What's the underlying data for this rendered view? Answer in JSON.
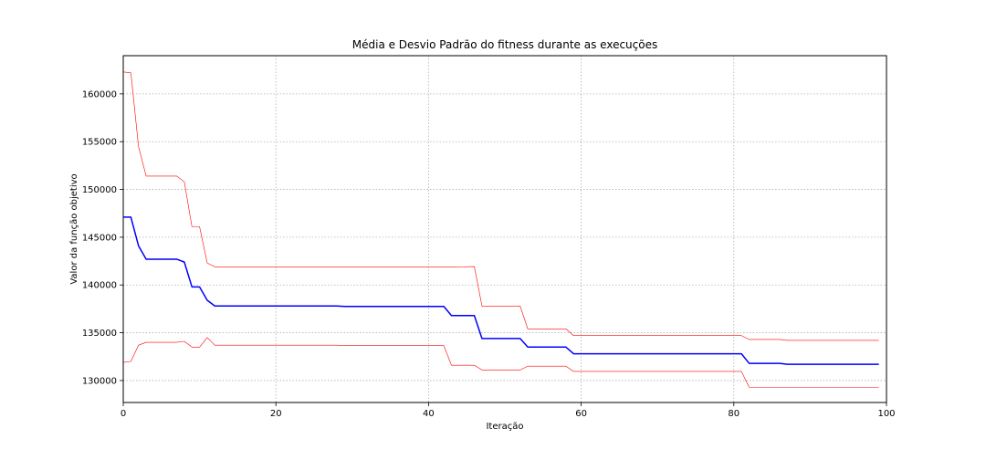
{
  "chart_data": {
    "type": "line",
    "title": "Média e Desvio Padrão do fitness durante as execuções",
    "xlabel": "Iteração",
    "ylabel": "Valor da função objetivo",
    "xlim": [
      0,
      100
    ],
    "ylim": [
      127700,
      164000
    ],
    "xticks": [
      0,
      20,
      40,
      60,
      80,
      100
    ],
    "yticks": [
      130000,
      135000,
      140000,
      145000,
      150000,
      155000,
      160000
    ],
    "grid": true,
    "colors": {
      "mean": "#0000ff",
      "std": "#ff0000",
      "grid": "#b0b0b0"
    },
    "series": [
      {
        "role": "mean",
        "x": [
          0,
          1,
          2,
          3,
          4,
          5,
          6,
          7,
          8,
          9,
          10,
          11,
          12,
          13,
          28,
          29,
          42,
          43,
          46,
          47,
          52,
          53,
          58,
          59,
          81,
          82,
          86,
          87,
          99
        ],
        "y": [
          147100,
          147100,
          144100,
          142700,
          142700,
          142700,
          142700,
          142700,
          142400,
          139800,
          139800,
          138400,
          137800,
          137800,
          137800,
          137750,
          137750,
          136800,
          136800,
          134400,
          134400,
          133500,
          133500,
          132800,
          132800,
          131800,
          131800,
          131700,
          131700
        ]
      },
      {
        "role": "mean_plus_std",
        "x": [
          0,
          1,
          2,
          3,
          4,
          5,
          6,
          7,
          8,
          9,
          10,
          11,
          12,
          13,
          28,
          29,
          42,
          43,
          46,
          47,
          52,
          53,
          58,
          59,
          81,
          82,
          86,
          87,
          99
        ],
        "y": [
          162300,
          162200,
          154500,
          151400,
          151400,
          151400,
          151400,
          151400,
          150800,
          146100,
          146100,
          142300,
          141900,
          141900,
          141900,
          141880,
          141880,
          141880,
          141930,
          137800,
          137800,
          135400,
          135400,
          134700,
          134700,
          134300,
          134300,
          134200,
          134200
        ]
      },
      {
        "role": "mean_minus_std",
        "x": [
          0,
          1,
          2,
          3,
          4,
          5,
          6,
          7,
          8,
          9,
          10,
          11,
          12,
          13,
          28,
          29,
          42,
          43,
          46,
          47,
          52,
          53,
          58,
          59,
          81,
          82,
          86,
          87,
          99
        ],
        "y": [
          131900,
          132000,
          133700,
          134000,
          134000,
          134000,
          134000,
          134000,
          134100,
          133500,
          133500,
          134500,
          133700,
          133700,
          133700,
          133650,
          133650,
          131600,
          131600,
          131100,
          131100,
          131500,
          131500,
          130950,
          130950,
          129300,
          129300,
          129300,
          129300
        ]
      }
    ]
  }
}
